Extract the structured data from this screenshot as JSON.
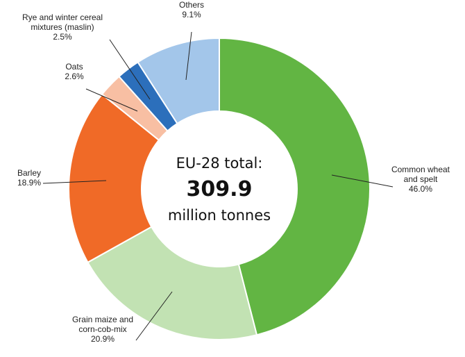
{
  "chart_data": {
    "type": "pie",
    "donut": true,
    "center_text": {
      "line1": "EU-28 total:",
      "value": "309.9",
      "line3": "million tonnes"
    },
    "unit": "%",
    "slices": [
      {
        "name": "Common wheat and spelt",
        "label_lines": [
          "Common wheat",
          "and spelt"
        ],
        "pct_label": "46.0%",
        "value": 46.0,
        "color": "#62b543"
      },
      {
        "name": "Grain maize and corn-cob-mix",
        "label_lines": [
          "Grain maize and",
          "corn-cob-mix"
        ],
        "pct_label": "20.9%",
        "value": 20.9,
        "color": "#c2e2b3"
      },
      {
        "name": "Barley",
        "label_lines": [
          "Barley"
        ],
        "pct_label": "18.9%",
        "value": 18.9,
        "color": "#f06a27"
      },
      {
        "name": "Oats",
        "label_lines": [
          "Oats"
        ],
        "pct_label": "2.6%",
        "value": 2.6,
        "color": "#f8bfa3"
      },
      {
        "name": "Rye and winter cereal mixtures (maslin)",
        "label_lines": [
          "Rye and winter cereal",
          "mixtures (maslin)"
        ],
        "pct_label": "2.5%",
        "value": 2.5,
        "color": "#2c6fbb"
      },
      {
        "name": "Others",
        "label_lines": [
          "Others"
        ],
        "pct_label": "9.1%",
        "value": 9.1,
        "color": "#a3c6ea"
      }
    ]
  }
}
